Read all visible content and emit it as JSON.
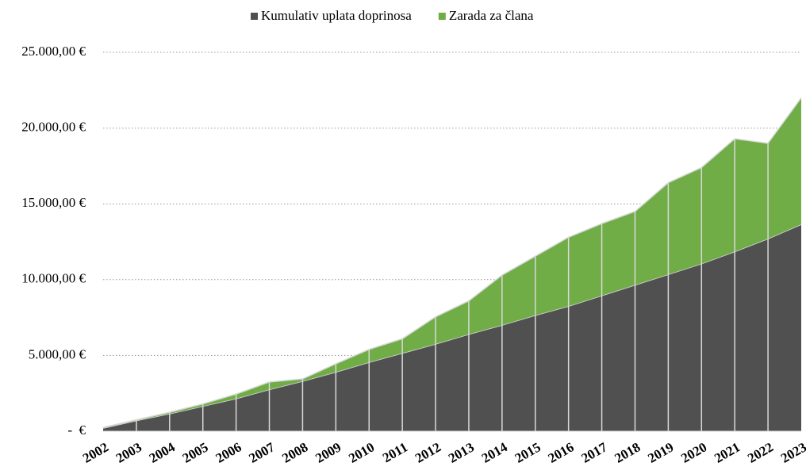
{
  "chart_data": {
    "type": "stacked_area",
    "categories": [
      "2002",
      "2003",
      "2004",
      "2005",
      "2006",
      "2007",
      "2008",
      "2009",
      "2010",
      "2011",
      "2012",
      "2013",
      "2014",
      "2015",
      "2016",
      "2017",
      "2018",
      "2019",
      "2020",
      "2021",
      "2022",
      "2023"
    ],
    "series": [
      {
        "name": "Kumulativ uplata doprinosa",
        "color": "#505050",
        "values": [
          200,
          700,
          1150,
          1650,
          2150,
          2750,
          3300,
          3900,
          4550,
          5150,
          5750,
          6400,
          7000,
          7650,
          8250,
          8950,
          9650,
          10350,
          11050,
          11850,
          12700,
          13650
        ]
      },
      {
        "name": "Zarada za člana",
        "color": "#70ad47",
        "values": [
          50,
          50,
          100,
          150,
          300,
          500,
          150,
          550,
          850,
          950,
          1800,
          2200,
          3300,
          3900,
          4550,
          4750,
          4850,
          6050,
          6350,
          7450,
          6300,
          8350
        ]
      }
    ],
    "ylim": [
      0,
      25000
    ],
    "yticks": [
      {
        "value": 0,
        "label": "-  €"
      },
      {
        "value": 5000,
        "label": "5.000,00 €"
      },
      {
        "value": 10000,
        "label": "10.000,00 €"
      },
      {
        "value": 15000,
        "label": "15.000,00 €"
      },
      {
        "value": 20000,
        "label": "20.000,00 €"
      },
      {
        "value": 25000,
        "label": "25.000,00 €"
      }
    ],
    "grid": true,
    "legend": "top"
  }
}
